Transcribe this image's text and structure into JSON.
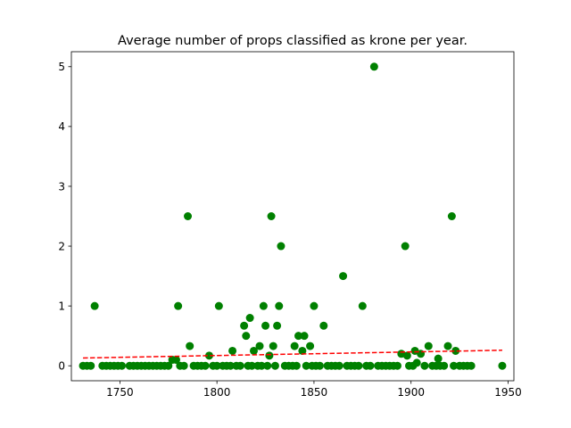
{
  "chart_data": {
    "type": "scatter",
    "title": "Average number of props classified as krone per year.",
    "xlabel": "",
    "ylabel": "",
    "xlim": [
      1725,
      1953
    ],
    "ylim": [
      -0.25,
      5.25
    ],
    "x_ticks": [
      1750,
      1800,
      1850,
      1900,
      1950
    ],
    "y_ticks": [
      0,
      1,
      2,
      3,
      4,
      5
    ],
    "grid": false,
    "legend": "none",
    "point_color": "#008000",
    "trend_color": "#ff0000",
    "points": [
      {
        "x": 1731,
        "y": 0
      },
      {
        "x": 1733,
        "y": 0
      },
      {
        "x": 1735,
        "y": 0
      },
      {
        "x": 1737,
        "y": 1
      },
      {
        "x": 1741,
        "y": 0
      },
      {
        "x": 1743,
        "y": 0
      },
      {
        "x": 1745,
        "y": 0
      },
      {
        "x": 1747,
        "y": 0
      },
      {
        "x": 1749,
        "y": 0
      },
      {
        "x": 1751,
        "y": 0
      },
      {
        "x": 1755,
        "y": 0
      },
      {
        "x": 1757,
        "y": 0
      },
      {
        "x": 1759,
        "y": 0
      },
      {
        "x": 1761,
        "y": 0
      },
      {
        "x": 1763,
        "y": 0
      },
      {
        "x": 1765,
        "y": 0
      },
      {
        "x": 1767,
        "y": 0
      },
      {
        "x": 1769,
        "y": 0
      },
      {
        "x": 1771,
        "y": 0
      },
      {
        "x": 1773,
        "y": 0
      },
      {
        "x": 1775,
        "y": 0
      },
      {
        "x": 1777,
        "y": 0.1
      },
      {
        "x": 1779,
        "y": 0.1
      },
      {
        "x": 1780,
        "y": 1
      },
      {
        "x": 1781,
        "y": 0
      },
      {
        "x": 1783,
        "y": 0
      },
      {
        "x": 1785,
        "y": 2.5
      },
      {
        "x": 1786,
        "y": 0.33
      },
      {
        "x": 1788,
        "y": 0
      },
      {
        "x": 1790,
        "y": 0
      },
      {
        "x": 1792,
        "y": 0
      },
      {
        "x": 1794,
        "y": 0
      },
      {
        "x": 1796,
        "y": 0.17
      },
      {
        "x": 1798,
        "y": 0
      },
      {
        "x": 1800,
        "y": 0
      },
      {
        "x": 1801,
        "y": 1
      },
      {
        "x": 1803,
        "y": 0
      },
      {
        "x": 1805,
        "y": 0
      },
      {
        "x": 1807,
        "y": 0
      },
      {
        "x": 1808,
        "y": 0.25
      },
      {
        "x": 1810,
        "y": 0
      },
      {
        "x": 1812,
        "y": 0
      },
      {
        "x": 1814,
        "y": 0.67
      },
      {
        "x": 1815,
        "y": 0.5
      },
      {
        "x": 1816,
        "y": 0
      },
      {
        "x": 1817,
        "y": 0.8
      },
      {
        "x": 1818,
        "y": 0
      },
      {
        "x": 1819,
        "y": 0.25
      },
      {
        "x": 1821,
        "y": 0
      },
      {
        "x": 1822,
        "y": 0.33
      },
      {
        "x": 1823,
        "y": 0
      },
      {
        "x": 1824,
        "y": 1
      },
      {
        "x": 1825,
        "y": 0.67
      },
      {
        "x": 1826,
        "y": 0
      },
      {
        "x": 1827,
        "y": 0.17
      },
      {
        "x": 1828,
        "y": 2.5
      },
      {
        "x": 1829,
        "y": 0.33
      },
      {
        "x": 1830,
        "y": 0
      },
      {
        "x": 1831,
        "y": 0.67
      },
      {
        "x": 1832,
        "y": 1
      },
      {
        "x": 1833,
        "y": 2
      },
      {
        "x": 1835,
        "y": 0
      },
      {
        "x": 1837,
        "y": 0
      },
      {
        "x": 1839,
        "y": 0
      },
      {
        "x": 1840,
        "y": 0.33
      },
      {
        "x": 1841,
        "y": 0
      },
      {
        "x": 1842,
        "y": 0.5
      },
      {
        "x": 1844,
        "y": 0.25
      },
      {
        "x": 1845,
        "y": 0.5
      },
      {
        "x": 1846,
        "y": 0
      },
      {
        "x": 1848,
        "y": 0.33
      },
      {
        "x": 1849,
        "y": 0
      },
      {
        "x": 1850,
        "y": 1
      },
      {
        "x": 1851,
        "y": 0
      },
      {
        "x": 1853,
        "y": 0
      },
      {
        "x": 1855,
        "y": 0.67
      },
      {
        "x": 1857,
        "y": 0
      },
      {
        "x": 1859,
        "y": 0
      },
      {
        "x": 1861,
        "y": 0
      },
      {
        "x": 1863,
        "y": 0
      },
      {
        "x": 1865,
        "y": 1.5
      },
      {
        "x": 1867,
        "y": 0
      },
      {
        "x": 1869,
        "y": 0
      },
      {
        "x": 1871,
        "y": 0
      },
      {
        "x": 1873,
        "y": 0
      },
      {
        "x": 1875,
        "y": 1
      },
      {
        "x": 1877,
        "y": 0
      },
      {
        "x": 1879,
        "y": 0
      },
      {
        "x": 1881,
        "y": 5
      },
      {
        "x": 1883,
        "y": 0
      },
      {
        "x": 1885,
        "y": 0
      },
      {
        "x": 1887,
        "y": 0
      },
      {
        "x": 1889,
        "y": 0
      },
      {
        "x": 1891,
        "y": 0
      },
      {
        "x": 1893,
        "y": 0
      },
      {
        "x": 1895,
        "y": 0.2
      },
      {
        "x": 1897,
        "y": 2
      },
      {
        "x": 1898,
        "y": 0.17
      },
      {
        "x": 1899,
        "y": 0
      },
      {
        "x": 1901,
        "y": 0
      },
      {
        "x": 1902,
        "y": 0.25
      },
      {
        "x": 1903,
        "y": 0.05
      },
      {
        "x": 1905,
        "y": 0.2
      },
      {
        "x": 1907,
        "y": 0
      },
      {
        "x": 1909,
        "y": 0.33
      },
      {
        "x": 1911,
        "y": 0
      },
      {
        "x": 1913,
        "y": 0
      },
      {
        "x": 1914,
        "y": 0.12
      },
      {
        "x": 1915,
        "y": 0
      },
      {
        "x": 1917,
        "y": 0
      },
      {
        "x": 1919,
        "y": 0.33
      },
      {
        "x": 1921,
        "y": 2.5
      },
      {
        "x": 1922,
        "y": 0
      },
      {
        "x": 1923,
        "y": 0.25
      },
      {
        "x": 1925,
        "y": 0
      },
      {
        "x": 1927,
        "y": 0
      },
      {
        "x": 1929,
        "y": 0
      },
      {
        "x": 1931,
        "y": 0
      },
      {
        "x": 1947,
        "y": 0
      }
    ],
    "trendline": {
      "style": "dashed",
      "x": [
        1731,
        1947
      ],
      "y": [
        0.13,
        0.26
      ]
    }
  }
}
